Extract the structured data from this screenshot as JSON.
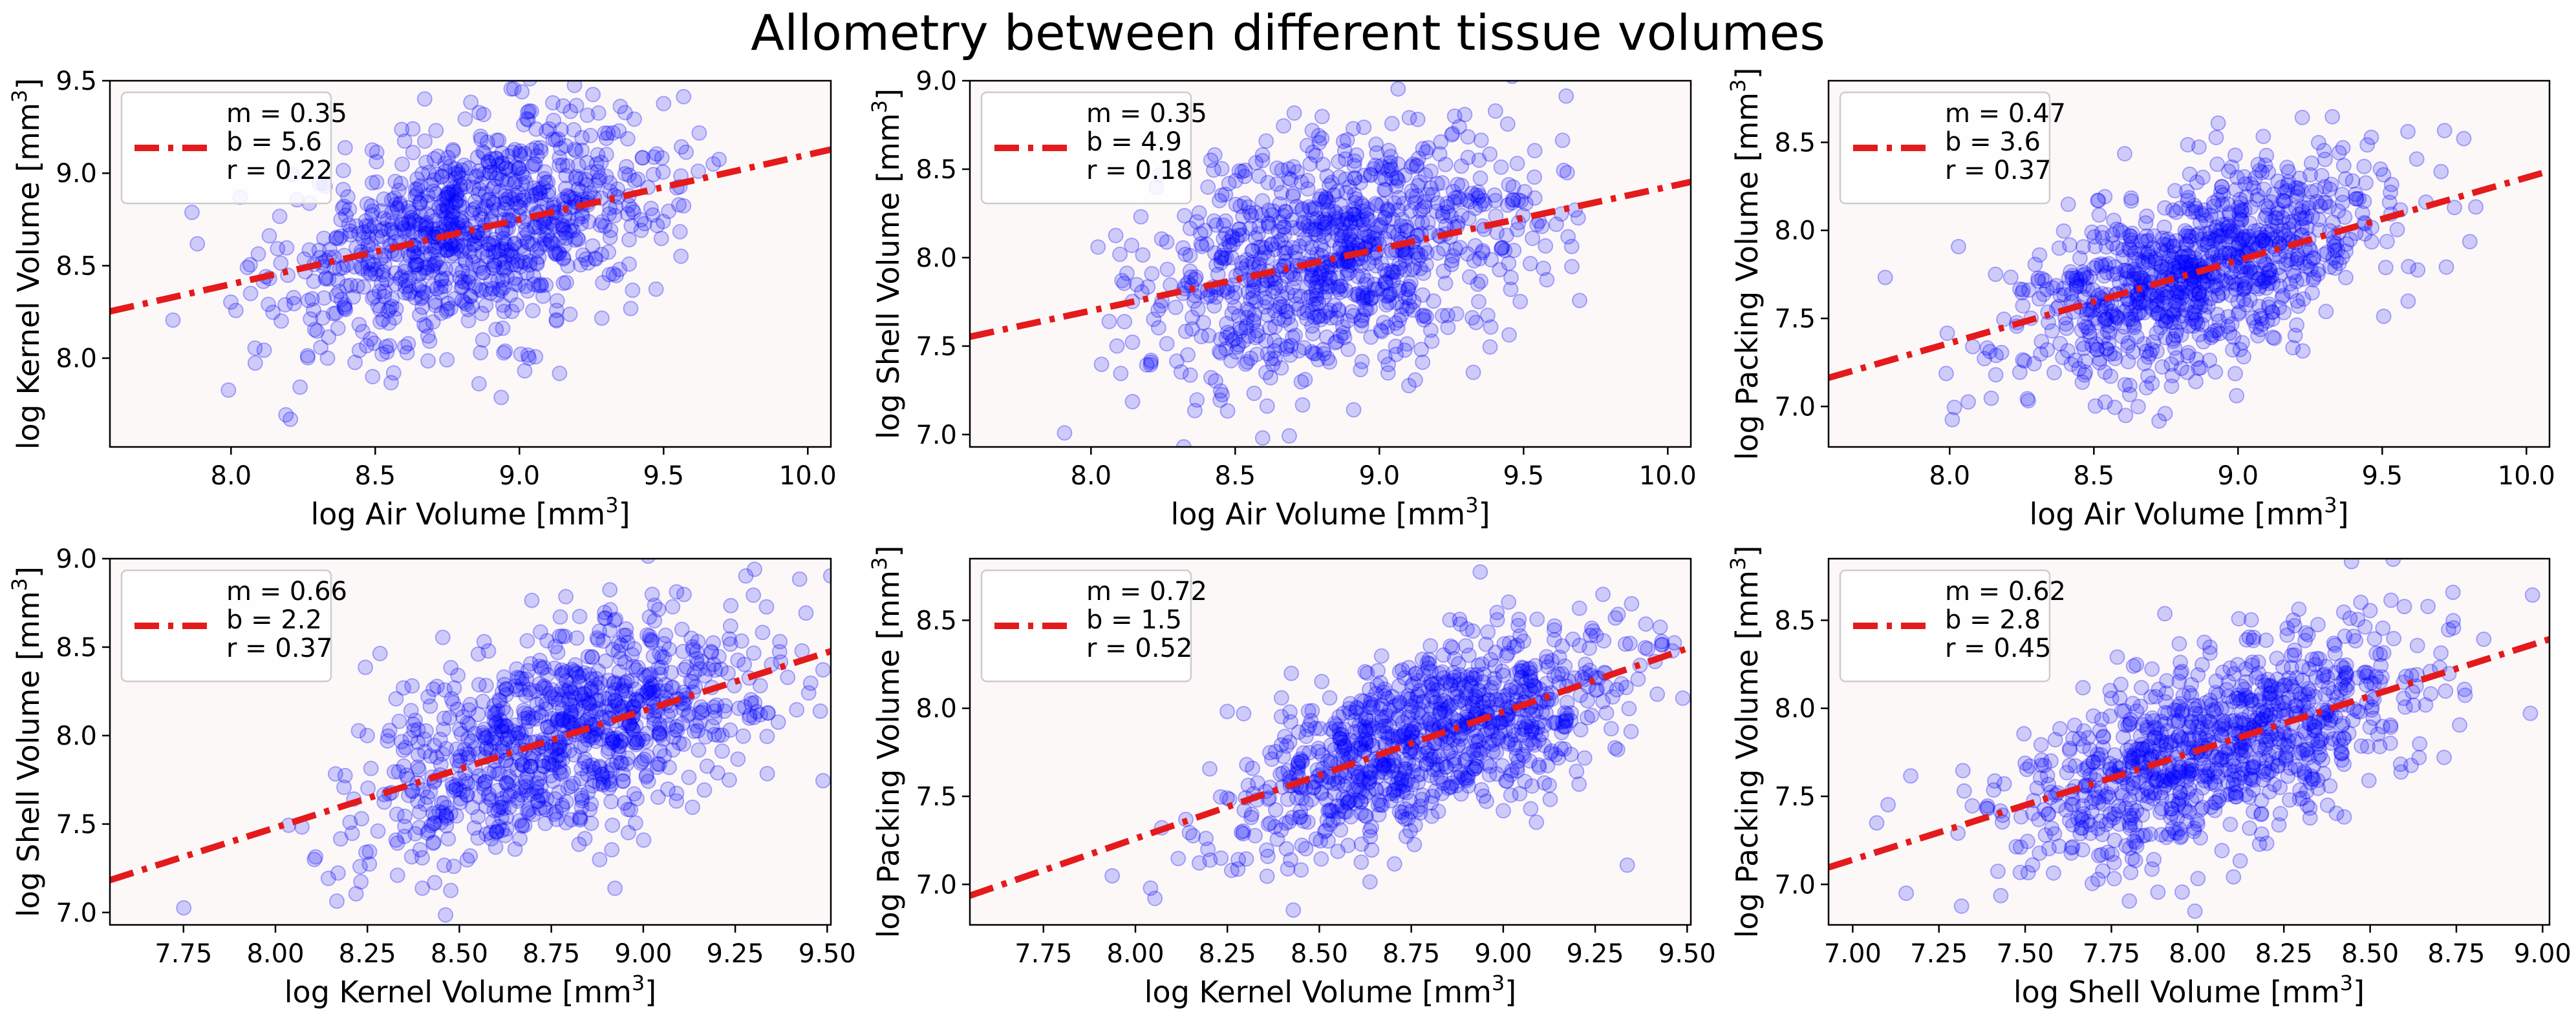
{
  "title": "Allometry between different tissue volumes",
  "colors": {
    "points": "#0000ff",
    "fit_line": "#e41a1c",
    "panel_bg": "#fdf8f8",
    "legend_bg": "#ffffff"
  },
  "chart_data": [
    {
      "type": "scatter",
      "xlabel": "log Air Volume [mm",
      "ylabel": "log Kernel Volume [mm",
      "unit_superscript": "3",
      "xlim": [
        7.58,
        10.08
      ],
      "ylim": [
        7.52,
        9.5
      ],
      "xticks": [
        8.0,
        8.5,
        9.0,
        9.5,
        10.0
      ],
      "xtick_labels": [
        "8.0",
        "8.5",
        "9.0",
        "9.5",
        "10.0"
      ],
      "yticks": [
        8.0,
        8.5,
        9.0,
        9.5
      ],
      "ytick_labels": [
        "8.0",
        "8.5",
        "9.0",
        "9.5"
      ],
      "fit": {
        "m": 0.35,
        "b": 5.6
      },
      "legend": [
        "m = 0.35",
        "b = 5.6",
        "r = 0.22"
      ],
      "legend_loc": "upper-left",
      "points": {
        "x_mean": 8.85,
        "x_sd": 0.33,
        "y_sd": 0.28,
        "count": 950
      }
    },
    {
      "type": "scatter",
      "xlabel": "log Air Volume [mm",
      "ylabel": "log Shell Volume [mm",
      "unit_superscript": "3",
      "xlim": [
        7.58,
        10.08
      ],
      "ylim": [
        6.93,
        9.0
      ],
      "xticks": [
        8.0,
        8.5,
        9.0,
        9.5,
        10.0
      ],
      "xtick_labels": [
        "8.0",
        "8.5",
        "9.0",
        "9.5",
        "10.0"
      ],
      "yticks": [
        7.0,
        7.5,
        8.0,
        8.5,
        9.0
      ],
      "ytick_labels": [
        "7.0",
        "7.5",
        "8.0",
        "8.5",
        "9.0"
      ],
      "fit": {
        "m": 0.35,
        "b": 4.9
      },
      "legend": [
        "m = 0.35",
        "b = 4.9",
        "r = 0.18"
      ],
      "legend_loc": "upper-left",
      "points": {
        "x_mean": 8.85,
        "x_sd": 0.33,
        "y_sd": 0.33,
        "count": 950
      }
    },
    {
      "type": "scatter",
      "xlabel": "log Air Volume [mm",
      "ylabel": "log Packing Volume [mm",
      "unit_superscript": "3",
      "xlim": [
        7.58,
        10.08
      ],
      "ylim": [
        6.77,
        8.85
      ],
      "xticks": [
        8.0,
        8.5,
        9.0,
        9.5,
        10.0
      ],
      "xtick_labels": [
        "8.0",
        "8.5",
        "9.0",
        "9.5",
        "10.0"
      ],
      "yticks": [
        7.0,
        7.5,
        8.0,
        8.5
      ],
      "ytick_labels": [
        "7.0",
        "7.5",
        "8.0",
        "8.5"
      ],
      "fit": {
        "m": 0.47,
        "b": 3.6
      },
      "legend": [
        "m = 0.47",
        "b = 3.6",
        "r = 0.37"
      ],
      "legend_loc": "upper-left",
      "points": {
        "x_mean": 8.85,
        "x_sd": 0.33,
        "y_sd": 0.27,
        "count": 950
      }
    },
    {
      "type": "scatter",
      "xlabel": "log Kernel Volume [mm",
      "ylabel": "log Shell Volume [mm",
      "unit_superscript": "3",
      "xlim": [
        7.55,
        9.51
      ],
      "ylim": [
        6.93,
        9.0
      ],
      "xticks": [
        7.75,
        8.0,
        8.25,
        8.5,
        8.75,
        9.0,
        9.25,
        9.5
      ],
      "xtick_labels": [
        "7.75",
        "8.00",
        "8.25",
        "8.50",
        "8.75",
        "9.00",
        "9.25",
        "9.50"
      ],
      "yticks": [
        7.0,
        7.5,
        8.0,
        8.5,
        9.0
      ],
      "ytick_labels": [
        "7.0",
        "7.5",
        "8.0",
        "8.5",
        "9.0"
      ],
      "fit": {
        "m": 0.66,
        "b": 2.2
      },
      "legend": [
        "m = 0.66",
        "b = 2.2",
        "r = 0.37"
      ],
      "legend_loc": "upper-left",
      "points": {
        "x_mean": 8.8,
        "x_sd": 0.28,
        "y_sd": 0.3,
        "count": 950
      }
    },
    {
      "type": "scatter",
      "xlabel": "log Kernel Volume [mm",
      "ylabel": "log Packing Volume [mm",
      "unit_superscript": "3",
      "xlim": [
        7.55,
        9.51
      ],
      "ylim": [
        6.77,
        8.85
      ],
      "xticks": [
        7.75,
        8.0,
        8.25,
        8.5,
        8.75,
        9.0,
        9.25,
        9.5
      ],
      "xtick_labels": [
        "7.75",
        "8.00",
        "8.25",
        "8.50",
        "8.75",
        "9.00",
        "9.25",
        "9.50"
      ],
      "yticks": [
        7.0,
        7.5,
        8.0,
        8.5
      ],
      "ytick_labels": [
        "7.0",
        "7.5",
        "8.0",
        "8.5"
      ],
      "fit": {
        "m": 0.72,
        "b": 1.5
      },
      "legend": [
        "m = 0.72",
        "b = 1.5",
        "r = 0.52"
      ],
      "legend_loc": "upper-left",
      "points": {
        "x_mean": 8.8,
        "x_sd": 0.28,
        "y_sd": 0.25,
        "count": 950
      }
    },
    {
      "type": "scatter",
      "xlabel": "log Shell Volume [mm",
      "ylabel": "log Packing Volume [mm",
      "unit_superscript": "3",
      "xlim": [
        6.93,
        9.02
      ],
      "ylim": [
        6.77,
        8.85
      ],
      "xticks": [
        7.0,
        7.25,
        7.5,
        7.75,
        8.0,
        8.25,
        8.5,
        8.75,
        9.0
      ],
      "xtick_labels": [
        "7.00",
        "7.25",
        "7.50",
        "7.75",
        "8.00",
        "8.25",
        "8.50",
        "8.75",
        "9.00"
      ],
      "yticks": [
        7.0,
        7.5,
        8.0,
        8.5
      ],
      "ytick_labels": [
        "7.0",
        "7.5",
        "8.0",
        "8.5"
      ],
      "fit": {
        "m": 0.62,
        "b": 2.8
      },
      "legend": [
        "m = 0.62",
        "b = 2.8",
        "r = 0.45"
      ],
      "legend_loc": "upper-left",
      "points": {
        "x_mean": 8.05,
        "x_sd": 0.3,
        "y_sd": 0.26,
        "count": 950
      }
    }
  ]
}
